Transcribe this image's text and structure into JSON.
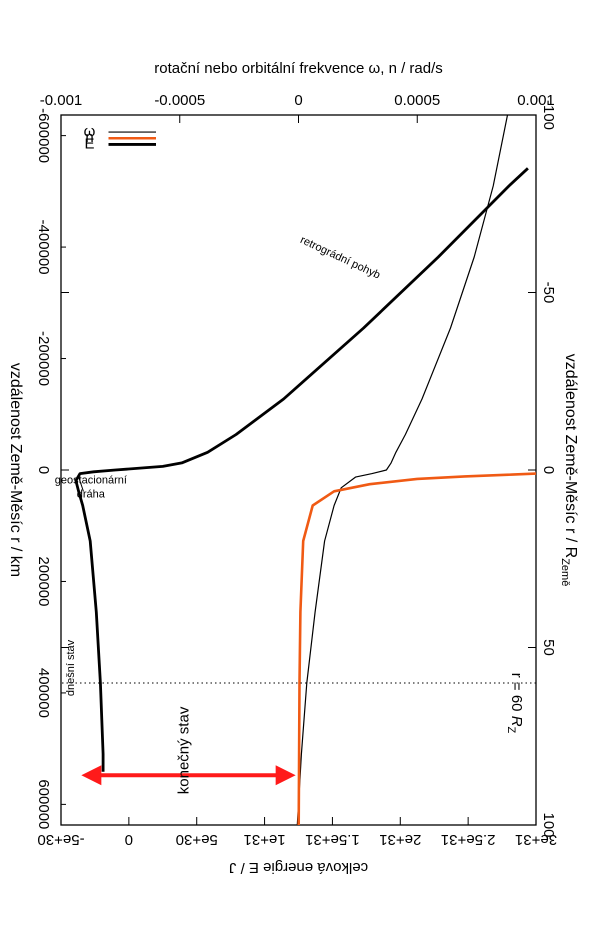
{
  "chart_data": {
    "type": "line",
    "rotated": "90deg clockwise",
    "axes": {
      "left": {
        "label": "vzdálenost Země-Měsíc  r / R",
        "label_sub": "Země",
        "ticks": [
          "-100",
          "-50",
          "0",
          "50",
          "100"
        ],
        "range": [
          -100,
          100
        ]
      },
      "right": {
        "label": "vzdálenost Země-Měsíc  r / km",
        "ticks": [
          "-600000",
          "-400000",
          "-200000",
          "0",
          "200000",
          "400000",
          "600000"
        ],
        "range": [
          -637000,
          637000
        ]
      },
      "bottom": {
        "label": "rotační nebo orbitální frekvence  ω, n / rad/s",
        "ticks": [
          "0.001",
          "0.0005",
          "0",
          "-0.0005",
          "-0.001"
        ],
        "range": [
          0.001,
          -0.001
        ]
      },
      "top": {
        "label": "celková energie  E / J",
        "ticks": [
          "3e+31",
          "2.5e+31",
          "2e+31",
          "1.5e+31",
          "1e+31",
          "5e+30",
          "0",
          "-5e+30"
        ],
        "range": [
          3e+31,
          -5e+30
        ]
      }
    },
    "series": [
      {
        "name": "ω",
        "color": "#000000",
        "points": [
          [
            -100,
            0.00088
          ],
          [
            -80,
            0.00082
          ],
          [
            -60,
            0.00074
          ],
          [
            -40,
            0.00064
          ],
          [
            -20,
            0.00052
          ],
          [
            -10,
            0.00045
          ],
          [
            -5,
            0.00041
          ],
          [
            -2,
            0.00039
          ],
          [
            0,
            0.00037
          ],
          [
            1,
            0.00031
          ],
          [
            2,
            0.00024
          ],
          [
            5,
            0.00018
          ],
          [
            10,
            0.00015
          ],
          [
            20,
            0.00011
          ],
          [
            40,
            7e-05
          ],
          [
            60,
            3.5e-05
          ],
          [
            80,
            1.2e-05
          ],
          [
            100,
            -5e-06
          ]
        ]
      },
      {
        "name": "n",
        "color": "#f05a14",
        "points": [
          [
            1,
            0.001
          ],
          [
            1.3,
            0.0009
          ],
          [
            1.8,
            0.0007
          ],
          [
            2.5,
            0.0005
          ],
          [
            4,
            0.0003
          ],
          [
            6,
            0.00015
          ],
          [
            10,
            6e-05
          ],
          [
            20,
            2e-05
          ],
          [
            40,
            8e-06
          ],
          [
            60,
            4e-06
          ],
          [
            100,
            1e-06
          ]
        ]
      },
      {
        "name": "E",
        "color": "#000000",
        "points": [
          [
            -85,
            2.94e+31
          ],
          [
            -80,
            2.8e+31
          ],
          [
            -60,
            2.28e+31
          ],
          [
            -40,
            1.73e+31
          ],
          [
            -20,
            1.14e+31
          ],
          [
            -10,
            7.9e+30
          ],
          [
            -5,
            5.8e+30
          ],
          [
            -2,
            3.9e+30
          ],
          [
            -1,
            2.5e+30
          ],
          [
            0,
            -1e+30
          ],
          [
            0.5,
            -2.6e+30
          ],
          [
            1,
            -3.6e+30
          ],
          [
            3,
            -3.9e+30
          ],
          [
            6,
            -3.7e+30
          ],
          [
            10,
            -3.4e+30
          ],
          [
            20,
            -2.85e+30
          ],
          [
            40,
            -2.4e+30
          ],
          [
            60,
            -2.1e+30
          ],
          [
            80,
            -1.9e+30
          ],
          [
            85,
            -1.9e+30
          ]
        ]
      }
    ],
    "legend": [
      "ω",
      "n",
      "E"
    ],
    "legend_position": "bottom-left",
    "annotations": {
      "lunar_marker_label_r": "r = 60 ",
      "lunar_marker_label_R": "R",
      "lunar_marker_label_sub": "Z",
      "current_state": "dnešní stav",
      "final_state": "konečný stav",
      "geostationary_line1": "geostacionární",
      "geostationary_line2": "dráha",
      "retrograde": "retrográdní pohyb"
    }
  }
}
